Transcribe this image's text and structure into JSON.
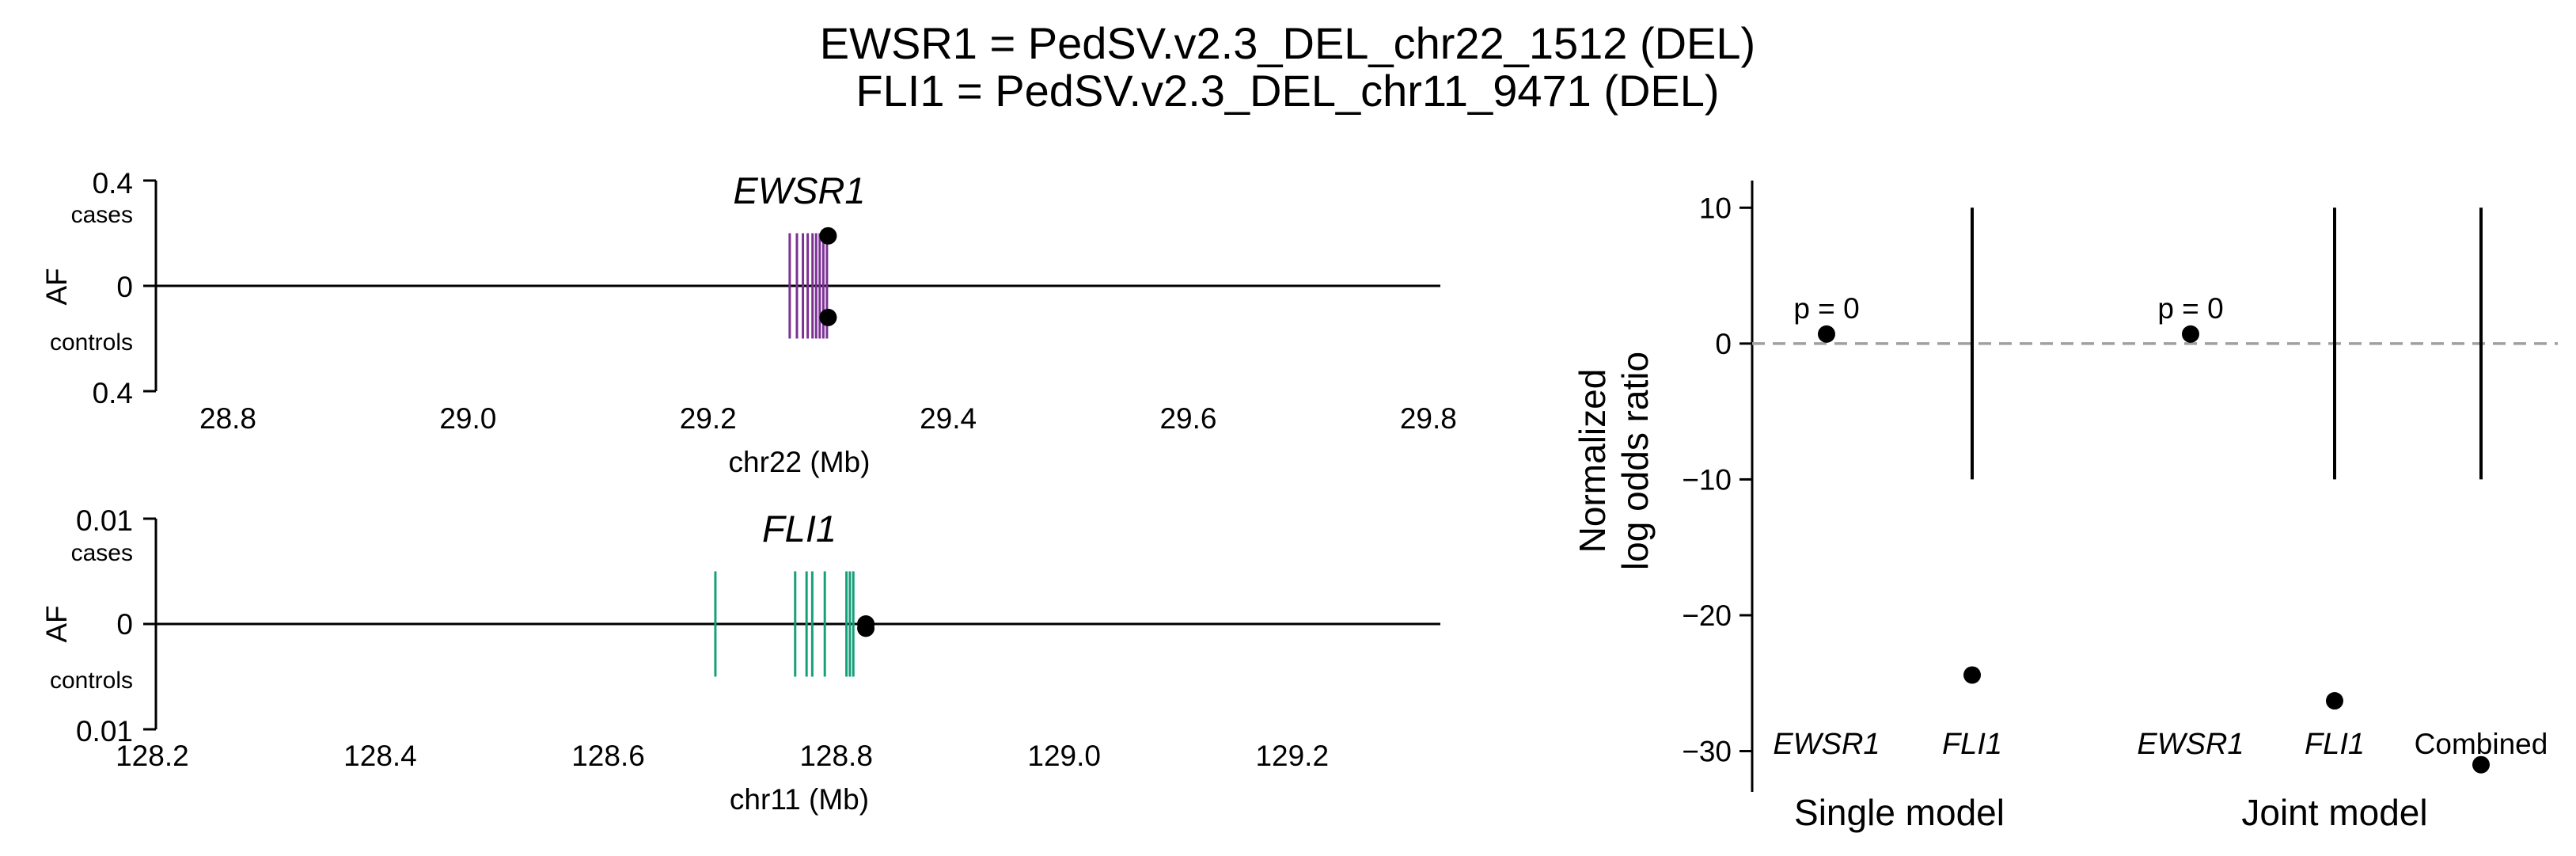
{
  "figure": {
    "title_lines": [
      "EWSR1 = PedSV.v2.3_DEL_chr22_1512 (DEL)",
      "FLI1 = PedSV.v2.3_DEL_chr11_9471 (DEL)"
    ]
  },
  "colors": {
    "ewsr1": "#7b3294",
    "fli1": "#16a07a",
    "point": "#000000",
    "reference_line": "#a0a0a0"
  },
  "chart_data": [
    {
      "type": "gene-track",
      "gene": "EWSR1",
      "xlabel": "chr22 (Mb)",
      "ylabel": "AF",
      "xlim": [
        28.74,
        29.81
      ],
      "xticks": [
        28.8,
        29.0,
        29.2,
        29.4,
        29.6,
        29.8
      ],
      "xtick_labels": [
        "28.8",
        "29.0",
        "29.2",
        "29.4",
        "29.6",
        "29.8"
      ],
      "ylim": [
        -0.4,
        0.4
      ],
      "ytick_labels": {
        "top": "0.4",
        "zero": "0",
        "bottom": "0.4"
      },
      "group_labels": {
        "cases": "cases",
        "controls": "controls"
      },
      "exons_mb": [
        29.268,
        29.274,
        29.279,
        29.283,
        29.287,
        29.29,
        29.293,
        29.296,
        29.299
      ],
      "exon_half_height": 0.2,
      "points": [
        {
          "pos_mb": 29.3,
          "af": 0.19,
          "group": "cases"
        },
        {
          "pos_mb": 29.3,
          "af": -0.12,
          "group": "controls"
        }
      ]
    },
    {
      "type": "gene-track",
      "gene": "FLI1",
      "xlabel": "chr11 (Mb)",
      "ylabel": "AF",
      "xlim": [
        128.19,
        129.33
      ],
      "xticks": [
        128.2,
        128.4,
        128.6,
        128.8,
        129.0,
        129.2
      ],
      "xtick_labels": [
        "128.2",
        "128.4",
        "128.6",
        "128.8",
        "129.0",
        "129.2"
      ],
      "ylim": [
        -0.01,
        0.01
      ],
      "ytick_labels": {
        "top": "0.01",
        "zero": "0",
        "bottom": "0.01"
      },
      "group_labels": {
        "cases": "cases",
        "controls": "controls"
      },
      "exons_mb": [
        128.694,
        128.764,
        128.774,
        128.779,
        128.79,
        128.809,
        128.812,
        128.815
      ],
      "exon_half_height": 0.005,
      "points": [
        {
          "pos_mb": 128.826,
          "af": 0.0,
          "group": "cases"
        },
        {
          "pos_mb": 128.826,
          "af": -0.0004,
          "group": "controls"
        }
      ]
    },
    {
      "type": "scatter",
      "ylabel_lines": [
        "Normalized",
        "log odds ratio"
      ],
      "ylim": [
        -33,
        12
      ],
      "yticks": [
        10,
        0,
        -10,
        -20,
        -30
      ],
      "ytick_labels": [
        "10",
        "0",
        "−10",
        "−20",
        "−30"
      ],
      "reference_y": 0,
      "groups": [
        {
          "label": "Single model",
          "categories": [
            "EWSR1",
            "FLI1"
          ]
        },
        {
          "label": "Joint model",
          "categories": [
            "EWSR1",
            "FLI1",
            "Combined"
          ]
        }
      ],
      "points": [
        {
          "group": "Single model",
          "category": "EWSR1",
          "estimate": 0.7,
          "ci": null,
          "annotation": "p = 0"
        },
        {
          "group": "Single model",
          "category": "FLI1",
          "estimate": -24.4,
          "ci": [
            -10,
            10
          ],
          "annotation": ""
        },
        {
          "group": "Joint model",
          "category": "EWSR1",
          "estimate": 0.7,
          "ci": null,
          "annotation": "p = 0"
        },
        {
          "group": "Joint model",
          "category": "FLI1",
          "estimate": -26.3,
          "ci": [
            -10,
            10
          ],
          "annotation": ""
        },
        {
          "group": "Joint model",
          "category": "Combined",
          "estimate": -31.0,
          "ci": [
            -10,
            10
          ],
          "annotation": ""
        }
      ]
    }
  ]
}
